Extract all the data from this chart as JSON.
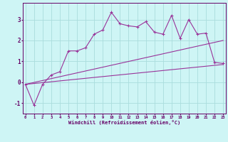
{
  "xlabel": "Windchill (Refroidissement éolien,°C)",
  "bg_color": "#cef5f5",
  "line_color": "#993399",
  "grid_color": "#aadddd",
  "x_ticks": [
    0,
    1,
    2,
    3,
    4,
    5,
    6,
    7,
    8,
    9,
    10,
    11,
    12,
    13,
    14,
    15,
    16,
    17,
    18,
    19,
    20,
    21,
    22,
    23
  ],
  "y_ticks": [
    -1,
    0,
    1,
    2,
    3
  ],
  "xlim": [
    -0.3,
    23.3
  ],
  "ylim": [
    -1.5,
    3.8
  ],
  "line1_x": [
    0,
    1,
    2,
    3,
    4,
    5,
    6,
    7,
    8,
    9,
    10,
    11,
    12,
    13,
    14,
    15,
    16,
    17,
    18,
    19,
    20,
    21,
    22,
    23
  ],
  "line1_y": [
    -0.1,
    -1.1,
    -0.1,
    0.35,
    0.5,
    1.5,
    1.5,
    1.65,
    2.3,
    2.5,
    3.35,
    2.8,
    2.7,
    2.65,
    2.9,
    2.4,
    2.3,
    3.2,
    2.1,
    3.0,
    2.3,
    2.35,
    0.95,
    0.9
  ],
  "line2_x": [
    0,
    23
  ],
  "line2_y": [
    -0.1,
    2.0
  ],
  "line3_x": [
    0,
    23
  ],
  "line3_y": [
    -0.1,
    0.85
  ]
}
